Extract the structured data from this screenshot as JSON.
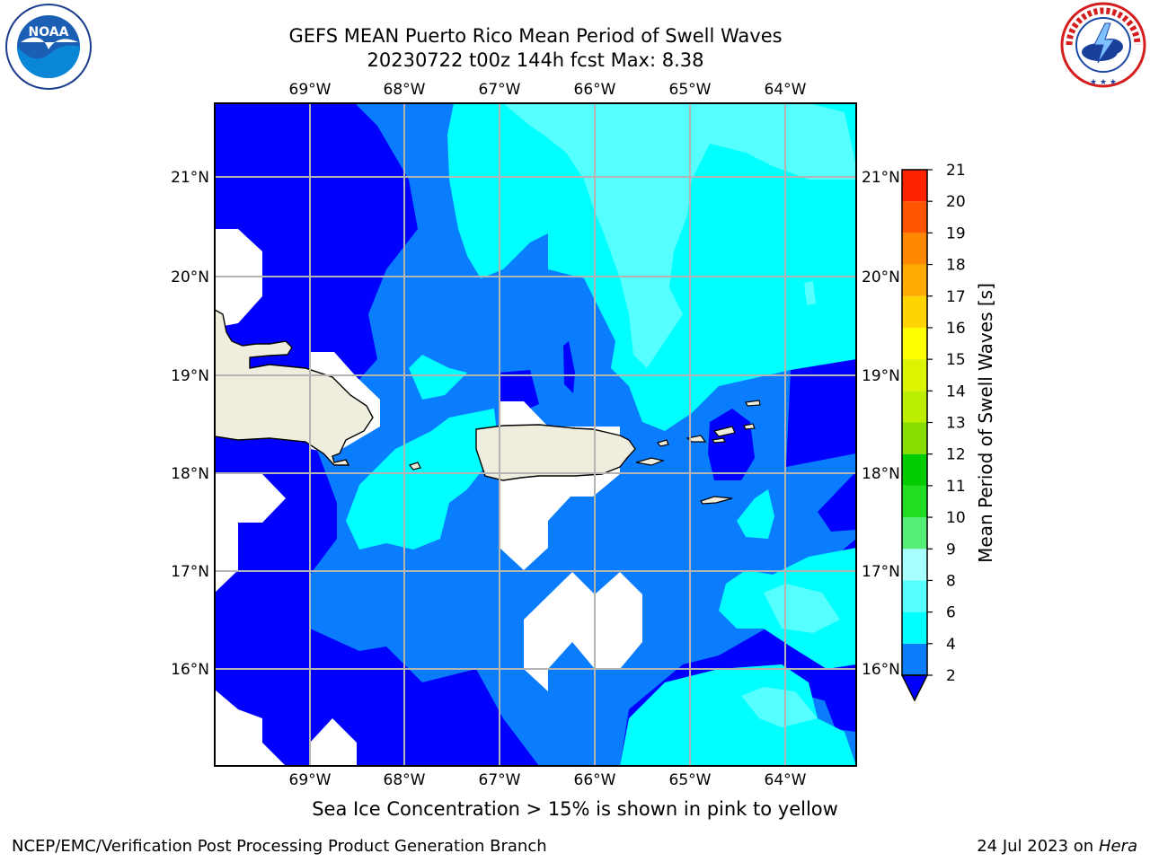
{
  "header": {
    "title_line1": "GEFS MEAN Puerto Rico Mean Period of Swell Waves",
    "title_line2": "20230722 t00z 144h fcst   Max: 8.38"
  },
  "logos": {
    "left": {
      "name": "NOAA",
      "text": "NOAA",
      "ring_text": "NATIONAL OCEANIC AND ATMOSPHERIC ADMINISTRATION · U.S. DEPARTMENT OF COMMERCE"
    },
    "right": {
      "name": "NWS",
      "ring_text": "NATIONAL WEATHER SERVICE"
    }
  },
  "map": {
    "lon_labels": [
      "69°W",
      "68°W",
      "67°W",
      "66°W",
      "65°W",
      "64°W"
    ],
    "lat_labels": [
      "21°N",
      "20°N",
      "19°N",
      "18°N",
      "17°N",
      "16°N"
    ],
    "colors": {
      "c2_4": "#0000ff",
      "c4_6": "#0a7dff",
      "c6_8": "#00ffff",
      "c8_9": "#55ffff",
      "land": "#efeede",
      "grid": "#b4b4b4",
      "frame": "#000000"
    }
  },
  "colorbar": {
    "title": "Mean Period of Swell Waves [s]",
    "ticks": [
      "2",
      "4",
      "6",
      "8",
      "9",
      "10",
      "11",
      "12",
      "13",
      "14",
      "15",
      "16",
      "17",
      "18",
      "19",
      "20",
      "21"
    ],
    "colors": [
      "#0a7dff",
      "#00ffff",
      "#55ffff",
      "#a8ffff",
      "#55ee77",
      "#22dd22",
      "#00cc00",
      "#88dd00",
      "#bbee00",
      "#ddf400",
      "#ffff00",
      "#ffd400",
      "#ffaa00",
      "#ff8800",
      "#ff5500",
      "#ff2200",
      "#ff0000"
    ],
    "under_color": "#0000ff"
  },
  "notes": {
    "sea_ice": "Sea Ice Concentration > 15% is shown in pink to yellow"
  },
  "footer": {
    "left": "NCEP/EMC/Verification Post Processing Product Generation Branch",
    "date": "24 Jul 2023 on ",
    "machine": "Hera"
  }
}
